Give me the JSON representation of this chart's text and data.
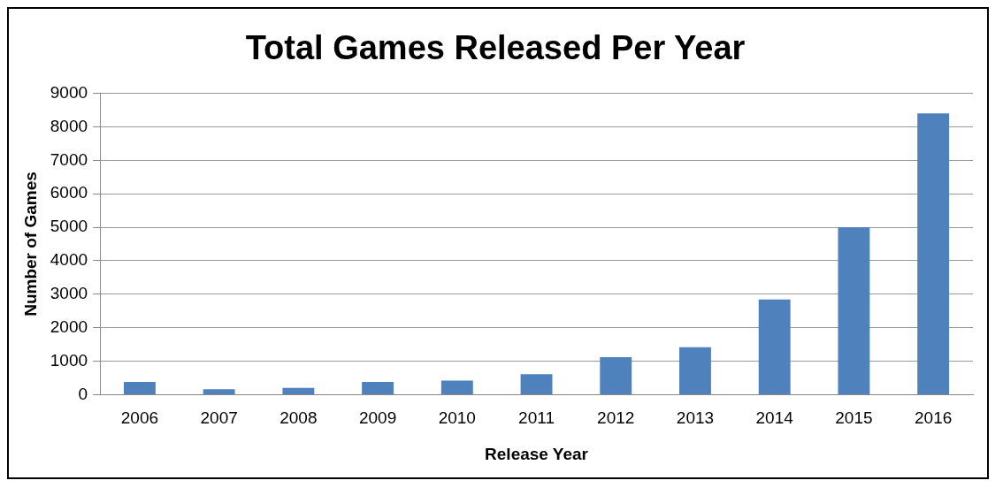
{
  "chart_data": {
    "type": "bar",
    "title": "Total Games Released Per Year",
    "xlabel": "Release Year",
    "ylabel": "Number of Games",
    "categories": [
      "2006",
      "2007",
      "2008",
      "2009",
      "2010",
      "2011",
      "2012",
      "2013",
      "2014",
      "2015",
      "2016"
    ],
    "values": [
      380,
      160,
      200,
      380,
      420,
      610,
      1120,
      1420,
      2840,
      5000,
      8400
    ],
    "color": "#4f81bd",
    "ylim": [
      0,
      9000
    ],
    "yticks": [
      0,
      1000,
      2000,
      3000,
      4000,
      5000,
      6000,
      7000,
      8000,
      9000
    ],
    "grid": "y",
    "legend": false
  }
}
